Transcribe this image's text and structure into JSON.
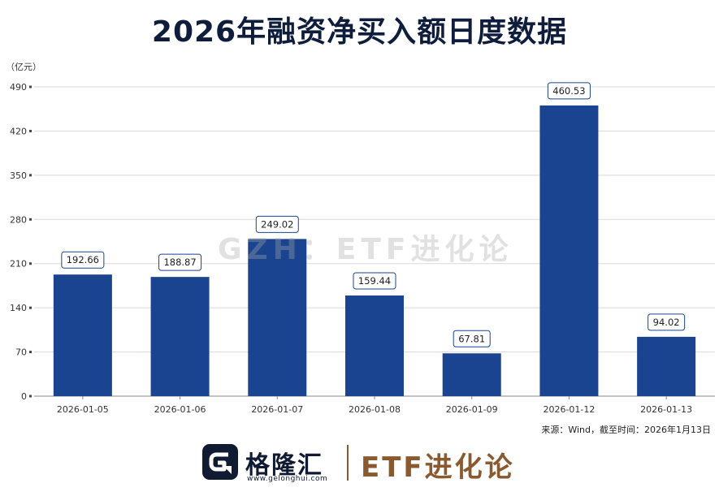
{
  "page": {
    "title": "2026年融资净买入额日度数据",
    "unit_label": "（亿元）",
    "source": "来源：Wind，截至时间：2026年1月13日",
    "watermark": "GZH：ETF进化论",
    "brand_name": "格隆汇",
    "brand_url": "www.gelonghui.com",
    "partner_name": "ETF进化论"
  },
  "colors": {
    "bar": "#1a4490",
    "title": "#0f1d3c",
    "brand_accent": "#8a5a2e",
    "label_border": "#1a4490"
  },
  "chart_data": {
    "type": "bar",
    "title": "2026年融资净买入额日度数据",
    "ylabel": "亿元",
    "xlabel": "",
    "categories": [
      "2026-01-05",
      "2026-01-06",
      "2026-01-07",
      "2026-01-08",
      "2026-01-09",
      "2026-01-12",
      "2026-01-13"
    ],
    "values": [
      192.66,
      188.87,
      249.02,
      159.44,
      67.81,
      460.53,
      94.02
    ],
    "value_labels": [
      "192.66",
      "188.87",
      "249.02",
      "159.44",
      "67.81",
      "460.53",
      "94.02"
    ],
    "ylim": [
      0,
      490
    ],
    "yticks": [
      0,
      70,
      140,
      210,
      280,
      350,
      420,
      490
    ],
    "ytick_labels": [
      "0",
      "70",
      "140",
      "210",
      "280",
      "350",
      "420",
      "490"
    ],
    "grid": true,
    "legend": "none"
  }
}
